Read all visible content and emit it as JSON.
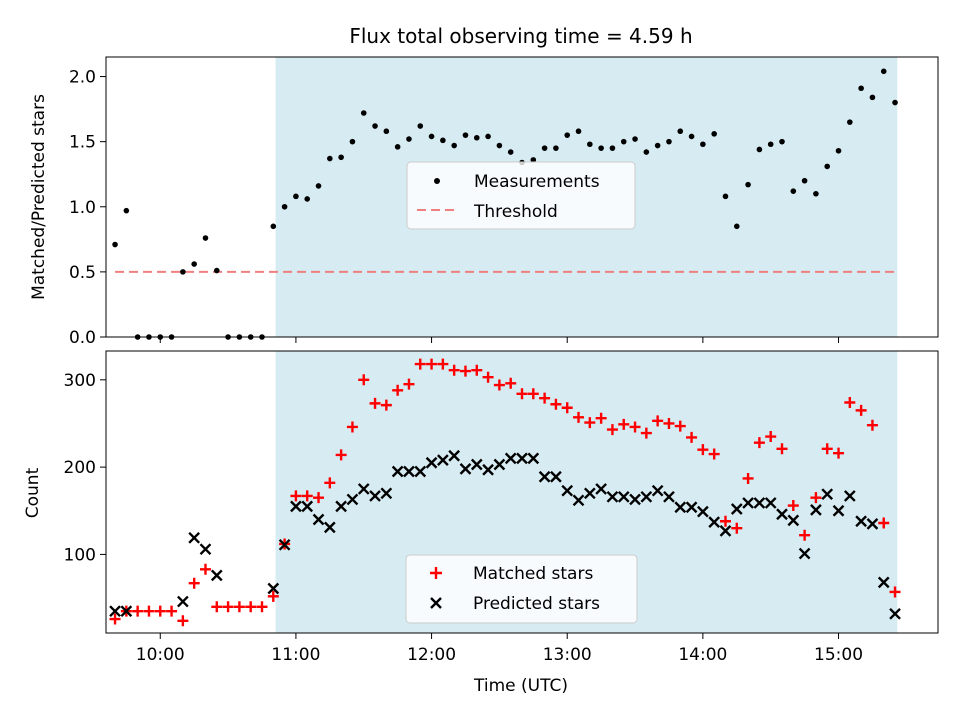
{
  "chart_data": [
    {
      "type": "scatter",
      "title": "Flux total observing time = 4.59 h",
      "ylabel": "Matched/Predicted stars",
      "xlim": [
        "09:36",
        "15:44"
      ],
      "ylim": [
        0,
        2.15
      ],
      "yticks": [
        "0.0",
        "0.5",
        "1.0",
        "1.5",
        "2.0"
      ],
      "legend_position": "center",
      "shaded_interval": [
        "10:51",
        "15:26"
      ],
      "colors": {
        "measurements": "#000000",
        "threshold": "#f08080",
        "shade": "#add8e6"
      },
      "threshold": {
        "name": "Threshold",
        "y": 0.5,
        "x_range": [
          "09:40",
          "15:26"
        ]
      },
      "series": [
        {
          "name": "Measurements",
          "x": [
            "09:40",
            "09:45",
            "09:50",
            "09:55",
            "10:00",
            "10:05",
            "10:10",
            "10:15",
            "10:20",
            "10:25",
            "10:30",
            "10:35",
            "10:40",
            "10:45",
            "10:50",
            "10:55",
            "11:00",
            "11:05",
            "11:10",
            "11:15",
            "11:20",
            "11:25",
            "11:30",
            "11:35",
            "11:40",
            "11:45",
            "11:50",
            "11:55",
            "12:00",
            "12:05",
            "12:10",
            "12:15",
            "12:20",
            "12:25",
            "12:30",
            "12:35",
            "12:40",
            "12:45",
            "12:50",
            "12:55",
            "13:00",
            "13:05",
            "13:10",
            "13:15",
            "13:20",
            "13:25",
            "13:30",
            "13:35",
            "13:40",
            "13:45",
            "13:50",
            "13:55",
            "14:00",
            "14:05",
            "14:10",
            "14:15",
            "14:20",
            "14:25",
            "14:30",
            "14:35",
            "14:40",
            "14:45",
            "14:50",
            "14:55",
            "15:00",
            "15:05",
            "15:10",
            "15:15",
            "15:20",
            "15:25"
          ],
          "y": [
            0.71,
            0.97,
            0,
            0,
            0,
            0,
            0.5,
            0.56,
            0.76,
            0.51,
            0,
            0,
            0,
            0,
            0.85,
            1.0,
            1.08,
            1.06,
            1.16,
            1.37,
            1.38,
            1.5,
            1.72,
            1.62,
            1.58,
            1.46,
            1.52,
            1.62,
            1.54,
            1.51,
            1.47,
            1.55,
            1.53,
            1.54,
            1.47,
            1.42,
            1.34,
            1.36,
            1.45,
            1.45,
            1.55,
            1.58,
            1.48,
            1.45,
            1.45,
            1.5,
            1.52,
            1.42,
            1.47,
            1.5,
            1.58,
            1.54,
            1.48,
            1.56,
            1.08,
            0.85,
            1.17,
            1.44,
            1.48,
            1.5,
            1.12,
            1.2,
            1.1,
            1.31,
            1.43,
            1.65,
            1.91,
            1.84,
            2.04,
            1.8
          ]
        }
      ]
    },
    {
      "type": "scatter",
      "xlabel": "Time (UTC)",
      "ylabel": "Count",
      "xlim": [
        "09:36",
        "15:44"
      ],
      "ylim": [
        10,
        333
      ],
      "xticks": [
        "10:00",
        "11:00",
        "12:00",
        "13:00",
        "14:00",
        "15:00"
      ],
      "yticks": [
        "100",
        "200",
        "300"
      ],
      "legend_position": "lower center",
      "shaded_interval": [
        "10:51",
        "15:26"
      ],
      "colors": {
        "matched": "#ff0000",
        "predicted": "#000000",
        "shade": "#add8e6"
      },
      "series": [
        {
          "name": "Matched stars",
          "x": [
            "09:40",
            "09:45",
            "09:50",
            "09:55",
            "10:00",
            "10:05",
            "10:10",
            "10:15",
            "10:20",
            "10:25",
            "10:30",
            "10:35",
            "10:40",
            "10:45",
            "10:50",
            "10:55",
            "11:00",
            "11:05",
            "11:10",
            "11:15",
            "11:20",
            "11:25",
            "11:30",
            "11:35",
            "11:40",
            "11:45",
            "11:50",
            "11:55",
            "12:00",
            "12:05",
            "12:10",
            "12:15",
            "12:20",
            "12:25",
            "12:30",
            "12:35",
            "12:40",
            "12:45",
            "12:50",
            "12:55",
            "13:00",
            "13:05",
            "13:10",
            "13:15",
            "13:20",
            "13:25",
            "13:30",
            "13:35",
            "13:40",
            "13:45",
            "13:50",
            "13:55",
            "14:00",
            "14:05",
            "14:10",
            "14:15",
            "14:20",
            "14:25",
            "14:30",
            "14:35",
            "14:40",
            "14:45",
            "14:50",
            "14:55",
            "15:00",
            "15:05",
            "15:10",
            "15:15",
            "15:20",
            "15:25"
          ],
          "y": [
            26,
            35,
            35,
            35,
            35,
            35,
            24,
            67,
            83,
            40,
            40,
            40,
            40,
            40,
            52,
            112,
            167,
            167,
            165,
            182,
            214,
            246,
            300,
            273,
            271,
            288,
            295,
            318,
            318,
            318,
            311,
            310,
            311,
            303,
            294,
            296,
            284,
            284,
            279,
            272,
            268,
            257,
            251,
            256,
            243,
            249,
            246,
            239,
            253,
            250,
            247,
            234,
            220,
            215,
            138,
            130,
            187,
            228,
            235,
            221,
            156,
            122,
            165,
            221,
            216,
            274,
            265,
            248,
            136,
            57
          ]
        },
        {
          "name": "Predicted stars",
          "x": [
            "09:40",
            "09:45",
            "09:50",
            "09:55",
            "10:00",
            "10:05",
            "10:10",
            "10:15",
            "10:20",
            "10:25",
            "10:30",
            "10:35",
            "10:40",
            "10:45",
            "10:50",
            "10:55",
            "11:00",
            "11:05",
            "11:10",
            "11:15",
            "11:20",
            "11:25",
            "11:30",
            "11:35",
            "11:40",
            "11:45",
            "11:50",
            "11:55",
            "12:00",
            "12:05",
            "12:10",
            "12:15",
            "12:20",
            "12:25",
            "12:30",
            "12:35",
            "12:40",
            "12:45",
            "12:50",
            "12:55",
            "13:00",
            "13:05",
            "13:10",
            "13:15",
            "13:20",
            "13:25",
            "13:30",
            "13:35",
            "13:40",
            "13:45",
            "13:50",
            "13:55",
            "14:00",
            "14:05",
            "14:10",
            "14:15",
            "14:20",
            "14:25",
            "14:30",
            "14:35",
            "14:40",
            "14:45",
            "14:50",
            "14:55",
            "15:00",
            "15:05",
            "15:10",
            "15:15",
            "15:20",
            "15:25"
          ],
          "y": [
            35,
            35,
            null,
            null,
            null,
            null,
            46,
            119,
            106,
            76,
            null,
            null,
            null,
            null,
            61,
            111,
            155,
            155,
            140,
            131,
            155,
            163,
            175,
            167,
            170,
            195,
            195,
            195,
            205,
            208,
            213,
            198,
            203,
            197,
            203,
            210,
            210,
            210,
            189,
            189,
            173,
            162,
            170,
            175,
            166,
            166,
            163,
            166,
            173,
            166,
            154,
            154,
            149,
            137,
            127,
            152,
            159,
            159,
            159,
            146,
            139,
            101,
            151,
            169,
            150,
            167,
            138,
            135,
            68,
            32
          ]
        }
      ]
    }
  ]
}
